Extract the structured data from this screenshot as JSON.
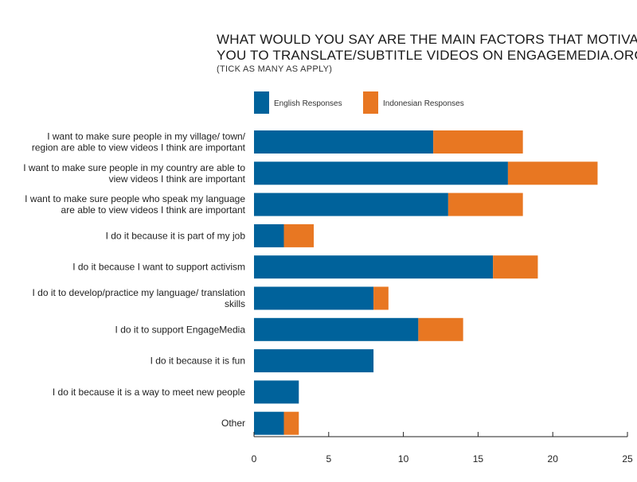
{
  "chart_data": {
    "type": "bar",
    "stacked": true,
    "orientation": "horizontal",
    "title_lines": [
      "WHAT WOULD YOU SAY ARE THE MAIN FACTORS THAT MOTIVATE",
      "YOU TO TRANSLATE/SUBTITLE VIDEOS ON ENGAGEMEDIA.ORG?"
    ],
    "subtitle": "(TICK AS MANY AS APPLY)",
    "categories": [
      [
        "I want to make sure people in my village/ town/",
        "region are able to view videos I think are important"
      ],
      [
        "I want to make sure people in my country are able to",
        "view videos I think are important"
      ],
      [
        "I want to make sure people who speak my language",
        "are able to view videos I think are important"
      ],
      [
        "I do it because it is part of my job"
      ],
      [
        "I do it because I want to support activism"
      ],
      [
        "I do it to develop/practice my language/ translation",
        "skills"
      ],
      [
        "I do it to support EngageMedia"
      ],
      [
        "I do it because it is fun"
      ],
      [
        "I do it because it is a way to meet new people"
      ],
      [
        "Other"
      ]
    ],
    "series": [
      {
        "name": "English Responses",
        "color": "#00629b",
        "values": [
          12,
          17,
          13,
          2,
          16,
          8,
          11,
          8,
          3,
          2
        ]
      },
      {
        "name": "Indonesian Responses",
        "color": "#e87722",
        "values": [
          6,
          6,
          5,
          2,
          3,
          1,
          3,
          0,
          0,
          1
        ]
      }
    ],
    "xlim": [
      0,
      25
    ],
    "xticks": [
      "0",
      "5",
      "10",
      "15",
      "20",
      "25"
    ],
    "legend_position": "top",
    "grid": false
  }
}
